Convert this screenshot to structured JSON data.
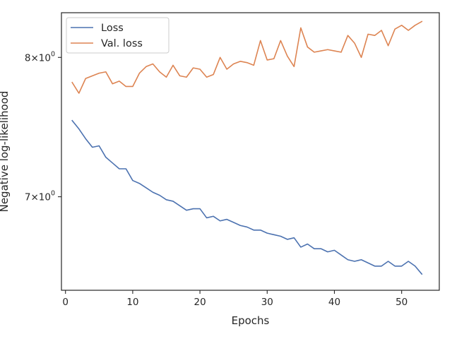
{
  "chart_data": {
    "type": "line",
    "xlabel": "Epochs",
    "ylabel": "Negative log-likelihood",
    "xlim": [
      -0.6,
      55.6
    ],
    "ylim": [
      6.4,
      8.35
    ],
    "yscale": "log",
    "grid": false,
    "legend_placement": "top-left",
    "x_ticks": [
      0,
      10,
      20,
      30,
      40,
      50
    ],
    "x_tick_labels": [
      "0",
      "10",
      "20",
      "30",
      "40",
      "50"
    ],
    "y_ticks": [
      {
        "value": 8,
        "base": "8",
        "times": "×",
        "ten": "10",
        "exp": "0"
      },
      {
        "value": 7,
        "base": "7",
        "times": "×",
        "ten": "10",
        "exp": "0"
      }
    ],
    "series": [
      {
        "name": "Loss",
        "color": "#4c72b0",
        "x": [
          1,
          2,
          3,
          4,
          5,
          6,
          7,
          8,
          9,
          10,
          11,
          12,
          13,
          14,
          15,
          16,
          17,
          18,
          19,
          20,
          21,
          22,
          23,
          24,
          25,
          26,
          27,
          28,
          29,
          30,
          31,
          32,
          33,
          34,
          35,
          36,
          37,
          38,
          39,
          40,
          41,
          42,
          43,
          44,
          45,
          46,
          47,
          48,
          49,
          50,
          51,
          52,
          53
        ],
        "values": [
          7.53,
          7.47,
          7.4,
          7.34,
          7.35,
          7.27,
          7.23,
          7.19,
          7.19,
          7.11,
          7.09,
          7.06,
          7.03,
          7.01,
          6.98,
          6.97,
          6.94,
          6.91,
          6.92,
          6.92,
          6.86,
          6.87,
          6.84,
          6.85,
          6.83,
          6.81,
          6.8,
          6.78,
          6.78,
          6.76,
          6.75,
          6.74,
          6.72,
          6.73,
          6.67,
          6.69,
          6.66,
          6.66,
          6.64,
          6.65,
          6.62,
          6.59,
          6.58,
          6.59,
          6.57,
          6.55,
          6.55,
          6.58,
          6.55,
          6.55,
          6.58,
          6.55,
          6.5
        ]
      },
      {
        "name": "Val. loss",
        "color": "#dd8452",
        "x": [
          1,
          2,
          3,
          4,
          5,
          6,
          7,
          8,
          9,
          10,
          11,
          12,
          13,
          14,
          15,
          16,
          17,
          18,
          19,
          20,
          21,
          22,
          23,
          24,
          25,
          26,
          27,
          28,
          29,
          30,
          31,
          32,
          33,
          34,
          35,
          36,
          37,
          38,
          39,
          40,
          41,
          42,
          43,
          44,
          45,
          46,
          47,
          48,
          49,
          50,
          51,
          52,
          53
        ],
        "values": [
          7.81,
          7.73,
          7.84,
          7.86,
          7.88,
          7.89,
          7.8,
          7.82,
          7.78,
          7.78,
          7.88,
          7.93,
          7.95,
          7.89,
          7.85,
          7.94,
          7.86,
          7.85,
          7.92,
          7.91,
          7.85,
          7.87,
          8.0,
          7.91,
          7.95,
          7.97,
          7.96,
          7.94,
          8.13,
          7.98,
          7.99,
          8.13,
          8.01,
          7.93,
          8.23,
          8.08,
          8.04,
          8.05,
          8.06,
          8.05,
          8.04,
          8.17,
          8.11,
          8.0,
          8.18,
          8.17,
          8.21,
          8.09,
          8.22,
          8.25,
          8.21,
          8.25,
          8.28
        ]
      }
    ]
  }
}
